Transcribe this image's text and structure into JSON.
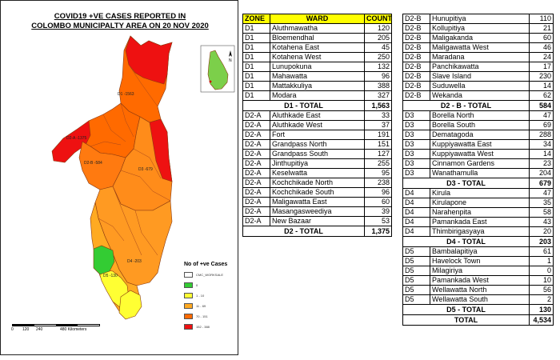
{
  "title": {
    "line1": "COVID19 +VE CASES REPORTED IN",
    "line2": "COLOMBO MUNICIPALTY AREA ON 20 NOV 2020"
  },
  "headers": {
    "zone": "ZONE",
    "ward": "WARD",
    "count": "COUNT"
  },
  "map": {
    "zone_labels": [
      {
        "zone": "D1",
        "text": "D1 -1563"
      },
      {
        "zone": "D2-A",
        "text": "D2-A -1375"
      },
      {
        "zone": "D2-B",
        "text": "D2-B -584"
      },
      {
        "zone": "D3",
        "text": "D3 -679"
      },
      {
        "zone": "D4",
        "text": "D4 -203"
      },
      {
        "zone": "D5",
        "text": "D5 -130"
      }
    ],
    "north_symbol": "N",
    "legend": {
      "title": "No of +ve Cases",
      "items": [
        {
          "label": "CMC_WORKSALE",
          "color": "#ffffff"
        },
        {
          "label": "0",
          "color": "#33cc33"
        },
        {
          "label": "1 - 10",
          "color": "#ffff33"
        },
        {
          "label": "11 - 69",
          "color": "#ffaa22"
        },
        {
          "label": "70 - 151",
          "color": "#ff6a00"
        },
        {
          "label": "152 - 388",
          "color": "#ee1111"
        }
      ]
    },
    "scale": {
      "ticks": [
        "0",
        "120",
        "240",
        "480 Kilometers"
      ]
    },
    "zone_colors": {
      "D1": "#ff6a00",
      "D1_hot": "#ee1111",
      "D2A": "#ff6a00",
      "D2B": "#ff7a10",
      "D3": "#ff8c1a",
      "D4": "#ff9a22",
      "D5": "#ffaa22",
      "low": "#ffff33",
      "zero": "#33cc33",
      "inset_island": "#7ccf4a"
    }
  },
  "table1": {
    "rows": [
      {
        "zone": "D1",
        "ward": "Aluthmawatha",
        "count": 120
      },
      {
        "zone": "D1",
        "ward": "Bloemendhal",
        "count": 205
      },
      {
        "zone": "D1",
        "ward": "Kotahena East",
        "count": 45
      },
      {
        "zone": "D1",
        "ward": "Kotahena West",
        "count": 250
      },
      {
        "zone": "D1",
        "ward": "Lunupokuna",
        "count": 132
      },
      {
        "zone": "D1",
        "ward": "Mahawatta",
        "count": 96
      },
      {
        "zone": "D1",
        "ward": "Mattakkuliya",
        "count": 388
      },
      {
        "zone": "D1",
        "ward": "Modara",
        "count": 327
      },
      {
        "total": true,
        "label": "D1 - TOTAL",
        "count": "1,563"
      },
      {
        "zone": "D2-A",
        "ward": "Aluthkade East",
        "count": 33
      },
      {
        "zone": "D2-A",
        "ward": "Aluthkade West",
        "count": 37
      },
      {
        "zone": "D2-A",
        "ward": "Fort",
        "count": 191
      },
      {
        "zone": "D2-A",
        "ward": "Grandpass North",
        "count": 151
      },
      {
        "zone": "D2-A",
        "ward": "Grandpass South",
        "count": 127
      },
      {
        "zone": "D2-A",
        "ward": "Jinthupitiya",
        "count": 255
      },
      {
        "zone": "D2-A",
        "ward": "Keselwatta",
        "count": 95
      },
      {
        "zone": "D2-A",
        "ward": "Kochchikade North",
        "count": 238
      },
      {
        "zone": "D2-A",
        "ward": "Kochchikade South",
        "count": 96
      },
      {
        "zone": "D2-A",
        "ward": "Maligawatta East",
        "count": 60
      },
      {
        "zone": "D2-A",
        "ward": "Masangasweediya",
        "count": 39
      },
      {
        "zone": "D2-A",
        "ward": "New Bazaar",
        "count": 53
      },
      {
        "total": true,
        "label": "D2 - TOTAL",
        "count": "1,375"
      }
    ]
  },
  "table2": {
    "rows": [
      {
        "zone": "D2-B",
        "ward": "Hunupitiya",
        "count": 110
      },
      {
        "zone": "D2-B",
        "ward": "Kollupitiya",
        "count": 21
      },
      {
        "zone": "D2-B",
        "ward": "Maligakanda",
        "count": 60
      },
      {
        "zone": "D2-B",
        "ward": "Maligawatta West",
        "count": 46
      },
      {
        "zone": "D2-B",
        "ward": "Maradana",
        "count": 24
      },
      {
        "zone": "D2-B",
        "ward": "Panchikawatta",
        "count": 17
      },
      {
        "zone": "D2-B",
        "ward": "Slave Island",
        "count": 230
      },
      {
        "zone": "D2-B",
        "ward": "Suduwella",
        "count": 14
      },
      {
        "zone": "D2-B",
        "ward": "Wekanda",
        "count": 62
      },
      {
        "total": true,
        "label": "D2 - B - TOTAL",
        "count": "584"
      },
      {
        "zone": "D3",
        "ward": "Borella North",
        "count": 47
      },
      {
        "zone": "D3",
        "ward": "Borella South",
        "count": 69
      },
      {
        "zone": "D3",
        "ward": "Dematagoda",
        "count": 288
      },
      {
        "zone": "D3",
        "ward": "Kuppiyawatta East",
        "count": 34
      },
      {
        "zone": "D3",
        "ward": "Kuppiyawatta West",
        "count": 14
      },
      {
        "zone": "D3",
        "ward": "Cinnamon Gardens",
        "count": 23
      },
      {
        "zone": "D3",
        "ward": "Wanathamulla",
        "count": 204
      },
      {
        "total": true,
        "label": "D3 - TOTAL",
        "count": "679"
      },
      {
        "zone": "D4",
        "ward": "Kirula",
        "count": 47
      },
      {
        "zone": "D4",
        "ward": "Kirulapone",
        "count": 35
      },
      {
        "zone": "D4",
        "ward": "Narahenpita",
        "count": 58
      },
      {
        "zone": "D4",
        "ward": "Pamankada East",
        "count": 43
      },
      {
        "zone": "D4",
        "ward": "Thimbirigasyaya",
        "count": 20
      },
      {
        "total": true,
        "label": "D4 - TOTAL",
        "count": "203"
      },
      {
        "zone": "D5",
        "ward": "Bambalapitiya",
        "count": 61
      },
      {
        "zone": "D5",
        "ward": "Havelock Town",
        "count": 1
      },
      {
        "zone": "D5",
        "ward": "Milagiriya",
        "count": 0
      },
      {
        "zone": "D5",
        "ward": "Pamankada West",
        "count": 10
      },
      {
        "zone": "D5",
        "ward": "Wellawatta North",
        "count": 56
      },
      {
        "zone": "D5",
        "ward": "Wellawatta South",
        "count": 2
      },
      {
        "total": true,
        "label": "D5 - TOTAL",
        "count": "130"
      },
      {
        "total": true,
        "label": "TOTAL",
        "count": "4,534"
      }
    ]
  }
}
